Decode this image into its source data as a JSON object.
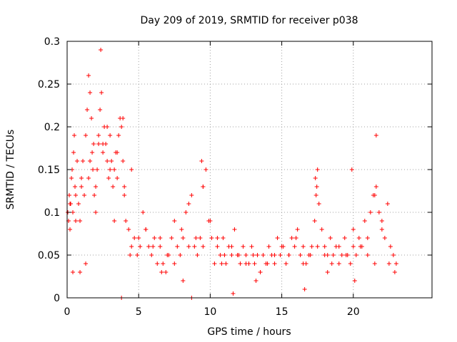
{
  "chart_data": {
    "type": "scatter",
    "title": "Day 209 of 2019, SRMTID for receiver p038",
    "xlabel": "GPS time / hours",
    "ylabel": "SRMTID / TECUs",
    "xlim": [
      0,
      25.5
    ],
    "ylim": [
      0,
      0.3
    ],
    "x_ticks": [
      0,
      5,
      10,
      15,
      20
    ],
    "y_ticks": [
      0,
      0.05,
      0.1,
      0.15,
      0.2,
      0.25,
      0.3
    ],
    "x_tick_labels": [
      "0",
      "5",
      "10",
      "15",
      "20"
    ],
    "y_tick_labels": [
      "0",
      "0.05",
      "0.1",
      "0.15",
      "0.2",
      "0.25",
      "0.3"
    ],
    "grid": true,
    "marker": "+",
    "color": "#ff0000",
    "series": [
      {
        "name": "SRMTID",
        "x": [
          0.05,
          0.1,
          0.15,
          0.2,
          0.25,
          0.3,
          0.35,
          0.4,
          0.45,
          0.5,
          0.55,
          0.6,
          0.7,
          0.8,
          0.9,
          1.0,
          1.1,
          1.2,
          1.3,
          1.4,
          1.5,
          1.6,
          1.7,
          1.75,
          1.8,
          1.85,
          1.9,
          2.0,
          2.1,
          2.2,
          2.3,
          2.35,
          2.4,
          2.5,
          2.6,
          2.7,
          2.8,
          2.9,
          3.0,
          3.1,
          3.2,
          3.3,
          3.4,
          3.5,
          3.6,
          3.7,
          3.8,
          3.9,
          4.0,
          4.1,
          4.3,
          4.5,
          4.7,
          4.9,
          5.1,
          5.3,
          5.5,
          5.7,
          5.9,
          6.1,
          6.3,
          6.5,
          6.7,
          6.9,
          7.1,
          7.3,
          7.5,
          7.7,
          7.9,
          8.1,
          8.3,
          8.5,
          8.7,
          8.9,
          9.1,
          9.3,
          9.5,
          9.7,
          9.9,
          10.1,
          10.3,
          10.5,
          10.7,
          10.9,
          11.1,
          11.3,
          11.5,
          11.7,
          11.9,
          12.1,
          12.3,
          12.5,
          12.7,
          12.9,
          13.1,
          13.3,
          13.5,
          13.7,
          13.9,
          14.1,
          14.3,
          14.5,
          14.7,
          14.9,
          15.1,
          15.3,
          15.5,
          15.7,
          15.9,
          16.1,
          16.3,
          16.5,
          16.7,
          16.9,
          17.1,
          17.3,
          17.4,
          17.5,
          17.6,
          17.8,
          18.0,
          18.2,
          18.4,
          18.6,
          18.8,
          19.0,
          19.2,
          19.4,
          19.6,
          19.8,
          20.0,
          20.2,
          20.4,
          20.6,
          20.8,
          21.0,
          21.2,
          21.4,
          21.6,
          21.8,
          22.0,
          22.2,
          22.4,
          22.6,
          22.8,
          23.0,
          0.2,
          0.6,
          1.0,
          1.5,
          2.0,
          2.5,
          3.0,
          3.5,
          4.0,
          4.5,
          5.0,
          5.5,
          6.0,
          6.5,
          7.0,
          7.5,
          8.0,
          8.5,
          9.0,
          9.5,
          10.0,
          10.5,
          11.0,
          11.5,
          12.0,
          12.5,
          13.0,
          13.5,
          14.0,
          14.5,
          15.0,
          15.5,
          16.0,
          16.5,
          17.0,
          17.5,
          18.0,
          18.5,
          19.0,
          19.5,
          20.0,
          20.5,
          21.0,
          21.5,
          22.0,
          22.5,
          1.3,
          1.6,
          2.2,
          2.8,
          3.3,
          3.8,
          8.7,
          11.6,
          19.9,
          9.4,
          9.5,
          17.35,
          17.45,
          21.5,
          21.6,
          0.4,
          0.9,
          3.9,
          4.4,
          6.6,
          8.1,
          10.8,
          13.2,
          16.6,
          18.2,
          20.1,
          22.9
        ],
        "y": [
          0.1,
          0.09,
          0.12,
          0.08,
          0.11,
          0.14,
          0.15,
          0.1,
          0.17,
          0.19,
          0.13,
          0.12,
          0.16,
          0.11,
          0.09,
          0.14,
          0.16,
          0.12,
          0.19,
          0.22,
          0.26,
          0.24,
          0.21,
          0.17,
          0.15,
          0.18,
          0.12,
          0.1,
          0.15,
          0.19,
          0.22,
          0.29,
          0.24,
          0.17,
          0.2,
          0.18,
          0.16,
          0.14,
          0.19,
          0.16,
          0.13,
          0.15,
          0.17,
          0.14,
          0.19,
          0.21,
          0.2,
          0.16,
          0.12,
          0.09,
          0.08,
          0.15,
          0.07,
          0.05,
          0.06,
          0.1,
          0.08,
          0.06,
          0.05,
          0.07,
          0.04,
          0.06,
          0.04,
          0.03,
          0.05,
          0.07,
          0.09,
          0.06,
          0.05,
          0.07,
          0.1,
          0.11,
          0.12,
          0.06,
          0.05,
          0.07,
          0.13,
          0.15,
          0.09,
          0.07,
          0.04,
          0.06,
          0.05,
          0.07,
          0.04,
          0.06,
          0.05,
          0.08,
          0.05,
          0.04,
          0.06,
          0.05,
          0.04,
          0.06,
          0.04,
          0.05,
          0.03,
          0.05,
          0.04,
          0.06,
          0.05,
          0.04,
          0.07,
          0.05,
          0.06,
          0.04,
          0.05,
          0.07,
          0.06,
          0.08,
          0.05,
          0.06,
          0.04,
          0.05,
          0.06,
          0.09,
          0.12,
          0.15,
          0.11,
          0.08,
          0.06,
          0.05,
          0.07,
          0.05,
          0.06,
          0.04,
          0.05,
          0.07,
          0.05,
          0.04,
          0.06,
          0.05,
          0.07,
          0.06,
          0.09,
          0.07,
          0.1,
          0.12,
          0.13,
          0.1,
          0.09,
          0.07,
          0.11,
          0.06,
          0.05,
          0.04,
          0.11,
          0.09,
          0.13,
          0.14,
          0.13,
          0.18,
          0.15,
          0.17,
          0.13,
          0.06,
          0.07,
          0.08,
          0.06,
          0.07,
          0.05,
          0.04,
          0.08,
          0.06,
          0.07,
          0.06,
          0.09,
          0.07,
          0.05,
          0.06,
          0.05,
          0.04,
          0.05,
          0.03,
          0.04,
          0.05,
          0.06,
          0.05,
          0.07,
          0.04,
          0.05,
          0.06,
          0.05,
          0.04,
          0.06,
          0.05,
          0.08,
          0.06,
          0.05,
          0.04,
          0.08,
          0.04,
          0.04,
          0.16,
          0.18,
          0.2,
          0.09,
          0.0,
          0.0,
          0.005,
          0.15,
          0.16,
          0.13,
          0.14,
          0.13,
          0.12,
          0.19,
          0.03,
          0.03,
          0.21,
          0.05,
          0.03,
          0.02,
          0.04,
          0.02,
          0.01,
          0.03,
          0.02,
          0.03
        ]
      }
    ]
  }
}
